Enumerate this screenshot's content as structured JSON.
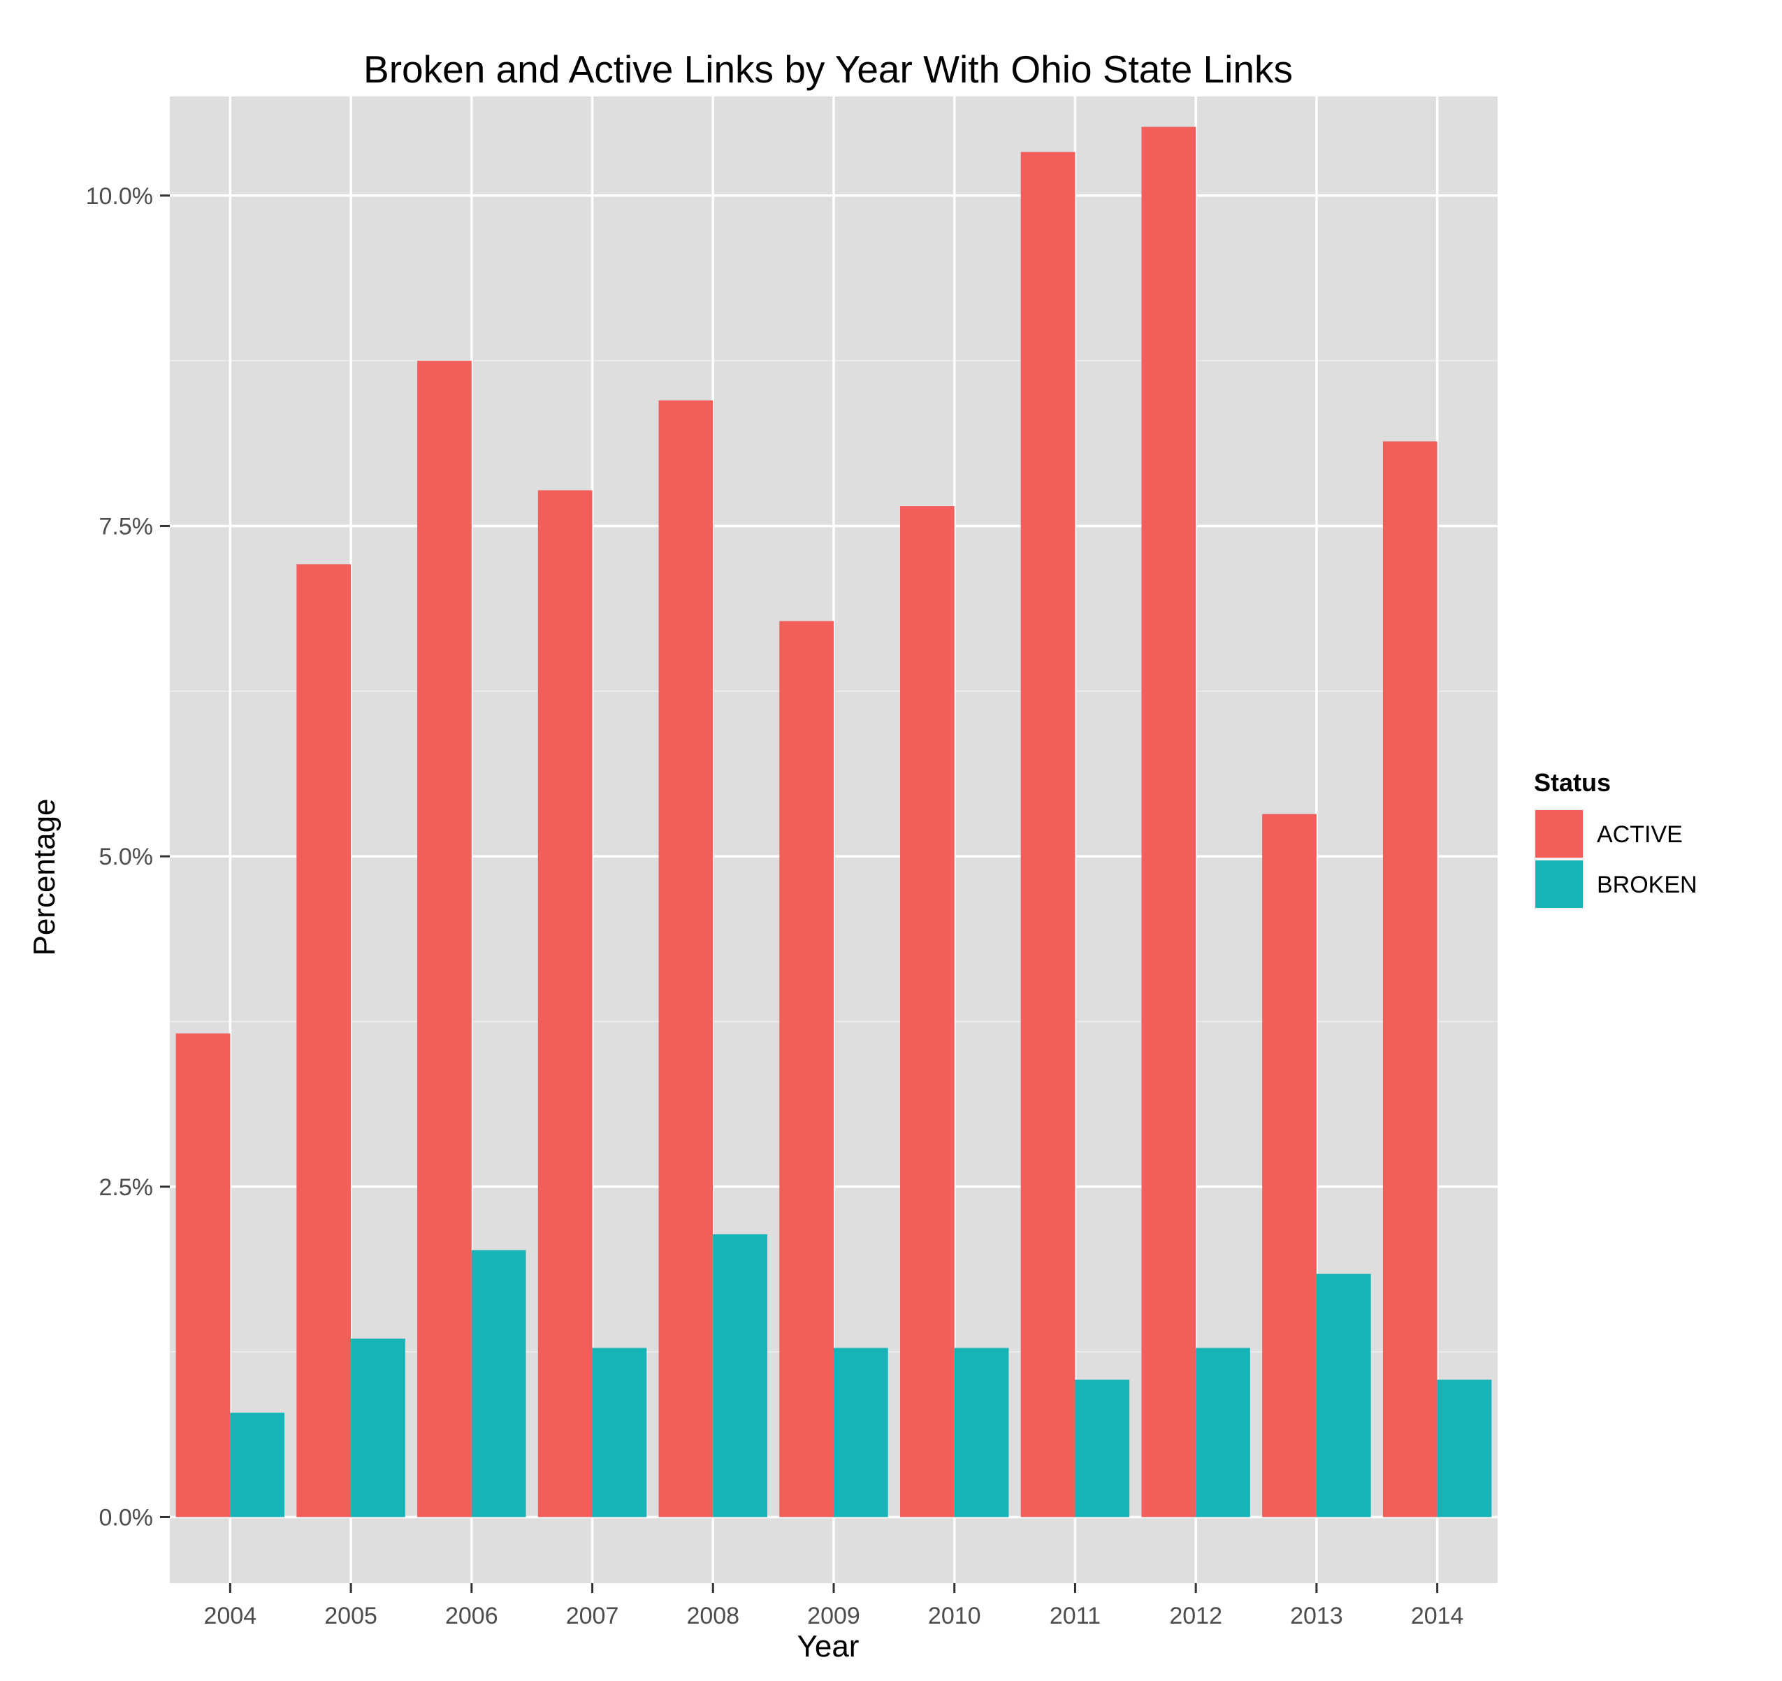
{
  "chart_data": {
    "type": "bar",
    "title": "Broken and Active Links by Year With Ohio State Links",
    "xlabel": "Year",
    "ylabel": "Percentage",
    "categories": [
      "2004",
      "2005",
      "2006",
      "2007",
      "2008",
      "2009",
      "2010",
      "2011",
      "2012",
      "2013",
      "2014"
    ],
    "series": [
      {
        "name": "ACTIVE",
        "color": "#F35E5A",
        "values": [
          3.66,
          7.21,
          8.75,
          7.77,
          8.45,
          6.78,
          7.65,
          10.33,
          10.52,
          5.32,
          8.14
        ]
      },
      {
        "name": "BROKEN",
        "color": "#17B3B7",
        "values": [
          0.79,
          1.35,
          2.02,
          1.28,
          2.14,
          1.28,
          1.28,
          1.04,
          1.28,
          1.84,
          1.04
        ]
      }
    ],
    "ylim": [
      -0.5,
      10.75
    ],
    "yticks": [
      0,
      2.5,
      5,
      7.5,
      10
    ],
    "ytick_labels": [
      "0.0%",
      "2.5%",
      "5.0%",
      "7.5%",
      "10.0%"
    ],
    "grid": true,
    "legend": {
      "title": "Status",
      "position": "right"
    },
    "panel_color": "#DEDEDE"
  }
}
